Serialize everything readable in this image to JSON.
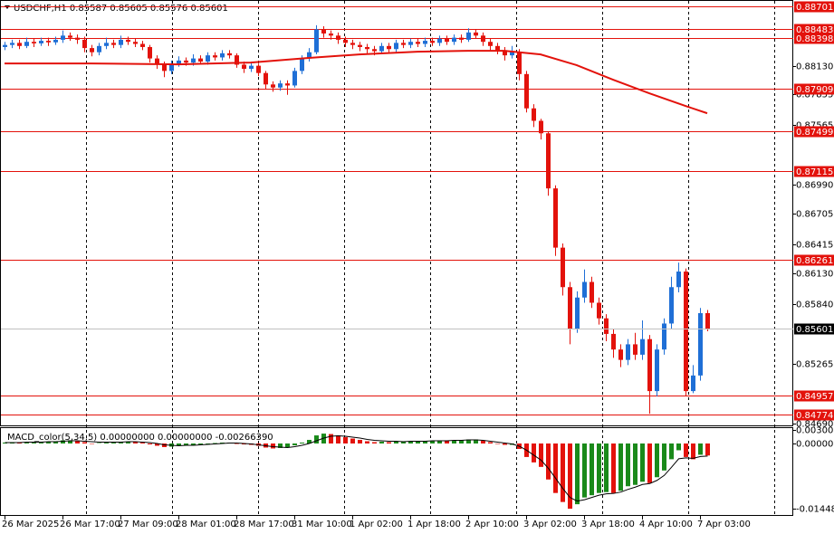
{
  "chart_data": {
    "type": "candlestick",
    "title": "USDCHF,H1 0.85587 0.85605 0.85576 0.85601",
    "categories": [
      "26 Mar 2025",
      null,
      null,
      null,
      null,
      null,
      null,
      null,
      "26 Mar 17:00",
      null,
      null,
      null,
      null,
      null,
      null,
      null,
      "27 Mar 09:00",
      null,
      null,
      null,
      null,
      null,
      null,
      null,
      "28 Mar 01:00",
      null,
      null,
      null,
      null,
      null,
      null,
      null,
      "28 Mar 17:00",
      null,
      null,
      null,
      null,
      null,
      null,
      null,
      "31 Mar 10:00",
      null,
      null,
      null,
      null,
      null,
      null,
      null,
      "1 Apr 02:00",
      null,
      null,
      null,
      null,
      null,
      null,
      null,
      "1 Apr 18:00",
      null,
      null,
      null,
      null,
      null,
      null,
      null,
      "2 Apr 10:00",
      null,
      null,
      null,
      null,
      null,
      null,
      null,
      "3 Apr 02:00",
      null,
      null,
      null,
      null,
      null,
      null,
      null,
      "3 Apr 18:00",
      null,
      null,
      null,
      null,
      null,
      null,
      null,
      "4 Apr 10:00",
      null,
      null,
      null,
      null,
      null,
      null,
      null,
      "7 Apr 03:00",
      null
    ],
    "open": [
      0.8831,
      0.8833,
      0.8835,
      0.8832,
      0.8836,
      0.88345,
      0.8837,
      0.88355,
      0.8838,
      0.8842,
      0.884,
      0.8838,
      0.883,
      0.8826,
      0.8832,
      0.8835,
      0.8833,
      0.8838,
      0.8836,
      0.8834,
      0.8831,
      0.882,
      0.8814,
      0.8808,
      0.8815,
      0.8818,
      0.8816,
      0.882,
      0.8817,
      0.8823,
      0.8821,
      0.8825,
      0.8823,
      0.8814,
      0.881,
      0.8813,
      0.8806,
      0.8795,
      0.8792,
      0.8796,
      0.8794,
      0.8808,
      0.882,
      0.8826,
      0.8848,
      0.8844,
      0.8842,
      0.8838,
      0.8835,
      0.8833,
      0.8831,
      0.8829,
      0.8827,
      0.8832,
      0.8829,
      0.8835,
      0.8833,
      0.8836,
      0.8834,
      0.8837,
      0.8835,
      0.8839,
      0.8836,
      0.884,
      0.8838,
      0.8845,
      0.8842,
      0.8836,
      0.8832,
      0.8828,
      0.8823,
      0.8826,
      0.8805,
      0.8772,
      0.876,
      0.8748,
      0.8695,
      0.8638,
      0.86,
      0.856,
      0.859,
      0.8605,
      0.8585,
      0.857,
      0.8555,
      0.854,
      0.853,
      0.8545,
      0.8535,
      0.855,
      0.85,
      0.854,
      0.8565,
      0.86,
      0.8615,
      0.85,
      0.8515,
      0.8575
    ],
    "high": [
      0.8836,
      0.8838,
      0.8838,
      0.884,
      0.8839,
      0.884,
      0.884,
      0.8841,
      0.8847,
      0.8845,
      0.8843,
      0.8841,
      0.8833,
      0.8835,
      0.884,
      0.8838,
      0.8842,
      0.8841,
      0.8839,
      0.8837,
      0.8833,
      0.8823,
      0.8817,
      0.8818,
      0.8822,
      0.8821,
      0.8824,
      0.8823,
      0.8826,
      0.8826,
      0.8828,
      0.8828,
      0.8825,
      0.8817,
      0.8816,
      0.8815,
      0.8808,
      0.8798,
      0.8799,
      0.8799,
      0.8811,
      0.8823,
      0.883,
      0.8852,
      0.8851,
      0.8847,
      0.8845,
      0.8841,
      0.8838,
      0.8836,
      0.8834,
      0.8832,
      0.8835,
      0.8835,
      0.8838,
      0.8838,
      0.8839,
      0.8839,
      0.884,
      0.884,
      0.8842,
      0.8842,
      0.8843,
      0.8843,
      0.8849,
      0.8848,
      0.8845,
      0.8839,
      0.8835,
      0.8831,
      0.8832,
      0.8829,
      0.8808,
      0.8776,
      0.8762,
      0.875,
      0.8698,
      0.8642,
      0.8605,
      0.8596,
      0.8617,
      0.861,
      0.859,
      0.8574,
      0.856,
      0.8545,
      0.855,
      0.8556,
      0.8568,
      0.8554,
      0.8545,
      0.857,
      0.861,
      0.86236,
      0.8618,
      0.8525,
      0.858,
      0.8578
    ],
    "low": [
      0.8828,
      0.883,
      0.8829,
      0.883,
      0.8831,
      0.8832,
      0.8832,
      0.8833,
      0.8835,
      0.8837,
      0.8834,
      0.8826,
      0.8822,
      0.8823,
      0.8829,
      0.883,
      0.883,
      0.8833,
      0.8831,
      0.8828,
      0.8816,
      0.881,
      0.8802,
      0.8805,
      0.8812,
      0.8813,
      0.8813,
      0.8814,
      0.8814,
      0.8818,
      0.8818,
      0.882,
      0.8811,
      0.8806,
      0.8807,
      0.8803,
      0.879,
      0.8788,
      0.8789,
      0.8785,
      0.8792,
      0.8805,
      0.8817,
      0.8824,
      0.884,
      0.8838,
      0.8834,
      0.8831,
      0.8829,
      0.8827,
      0.8825,
      0.8823,
      0.8824,
      0.8826,
      0.8826,
      0.883,
      0.883,
      0.8831,
      0.8831,
      0.8832,
      0.8832,
      0.8833,
      0.8833,
      0.8835,
      0.8836,
      0.8839,
      0.8832,
      0.8828,
      0.8824,
      0.8818,
      0.882,
      0.8799,
      0.8768,
      0.8754,
      0.8742,
      0.8688,
      0.863,
      0.8592,
      0.8545,
      0.8556,
      0.8585,
      0.858,
      0.8564,
      0.8548,
      0.8532,
      0.8523,
      0.8525,
      0.853,
      0.853,
      0.84782,
      0.8495,
      0.8535,
      0.856,
      0.8595,
      0.84956,
      0.8498,
      0.851,
      0.85576
    ],
    "close": [
      0.8833,
      0.8835,
      0.8832,
      0.8836,
      0.88345,
      0.8837,
      0.88355,
      0.8838,
      0.8842,
      0.884,
      0.8838,
      0.883,
      0.8826,
      0.8832,
      0.8835,
      0.8833,
      0.8838,
      0.8836,
      0.8834,
      0.8831,
      0.882,
      0.8814,
      0.8808,
      0.8815,
      0.8818,
      0.8816,
      0.882,
      0.8817,
      0.8823,
      0.8821,
      0.8825,
      0.8823,
      0.8814,
      0.881,
      0.8813,
      0.8806,
      0.8795,
      0.8792,
      0.8796,
      0.8794,
      0.8808,
      0.882,
      0.8826,
      0.8848,
      0.8844,
      0.8842,
      0.8838,
      0.8835,
      0.8833,
      0.8831,
      0.8829,
      0.8827,
      0.8832,
      0.8829,
      0.8835,
      0.8833,
      0.8836,
      0.8834,
      0.8837,
      0.8835,
      0.8839,
      0.8836,
      0.884,
      0.8838,
      0.8845,
      0.8842,
      0.8836,
      0.8832,
      0.8828,
      0.8823,
      0.8826,
      0.8805,
      0.8772,
      0.876,
      0.8748,
      0.8695,
      0.8638,
      0.86,
      0.856,
      0.859,
      0.8605,
      0.8585,
      0.857,
      0.8555,
      0.854,
      0.853,
      0.8545,
      0.8535,
      0.855,
      0.85,
      0.854,
      0.8565,
      0.86,
      0.8615,
      0.85,
      0.8515,
      0.8575,
      0.85601
    ],
    "up_color": "#1f6fd6",
    "down_color": "#e3120b",
    "ylim": [
      0.8467,
      0.88745
    ],
    "yticks": [
      {
        "value": 0.8813,
        "label": "0.88130"
      },
      0.87855,
      0.87565,
      {
        "value": 0.8699,
        "label": "0.86990"
      },
      0.86705,
      0.86415,
      {
        "value": 0.8613,
        "label": "0.86130"
      },
      {
        "value": 0.8584,
        "label": "0.85840"
      },
      0.85265,
      {
        "value": 0.8469,
        "label": "0.84690"
      }
    ],
    "price_lines": {
      "color": "#e3120b",
      "values": [
        0.88701,
        0.88483,
        0.88398,
        0.87909,
        0.87499,
        0.87115,
        0.86261,
        0.84957,
        0.84774
      ]
    },
    "current_price": {
      "value": 0.85601,
      "color": "#000000"
    },
    "moving_average": {
      "color": "#e3120b",
      "x": [
        0,
        12,
        24,
        34,
        42,
        49,
        57,
        64,
        69,
        74,
        79,
        84,
        89,
        94,
        97
      ],
      "values": [
        0.88152,
        0.88152,
        0.88143,
        0.88161,
        0.88205,
        0.88239,
        0.88265,
        0.88274,
        0.88274,
        0.88239,
        0.88135,
        0.87996,
        0.87865,
        0.87743,
        0.87673
      ]
    },
    "indicator": {
      "type": "macd",
      "title": "MACD_color(5,34,5) 0.00000000 0.00000000 -0.00266390",
      "histogram": [
        0.0002,
        0.0003,
        0.0002,
        0.0003,
        0.0003,
        0.0004,
        0.0004,
        0.0005,
        0.0007,
        0.0007,
        0.0006,
        0.0003,
        0,
        0.0001,
        0.0003,
        0.0003,
        0.0004,
        0.0004,
        0.0003,
        0.0002,
        -0.0002,
        -0.0005,
        -0.0008,
        -0.0007,
        -0.0005,
        -0.0004,
        -0.0003,
        -0.0002,
        0,
        0.0001,
        0.0002,
        0.0002,
        0,
        -0.0002,
        -0.0003,
        -0.0005,
        -0.0009,
        -0.0011,
        -0.001,
        -0.0009,
        -0.0004,
        0.0002,
        0.0008,
        0.0018,
        0.0022,
        0.0021,
        0.0018,
        0.0014,
        0.0011,
        0.0008,
        0.0005,
        0.0003,
        0.0004,
        0.0003,
        0.0004,
        0.0004,
        0.0005,
        0.0005,
        0.0006,
        0.0006,
        0.0007,
        0.0006,
        0.0007,
        0.0007,
        0.0009,
        0.0009,
        0.0006,
        0.0003,
        0,
        -0.0003,
        -0.0003,
        -0.0012,
        -0.003,
        -0.0042,
        -0.0052,
        -0.008,
        -0.011,
        -0.013,
        -0.0145,
        -0.0135,
        -0.012,
        -0.0115,
        -0.011,
        -0.0108,
        -0.011,
        -0.0105,
        -0.0095,
        -0.0092,
        -0.0085,
        -0.0088,
        -0.0075,
        -0.006,
        -0.0035,
        -0.0015,
        -0.003,
        -0.0035,
        -0.0025,
        -0.0026639
      ],
      "signal": [
        0.0002,
        0.0002,
        0.0002,
        0.0003,
        0.0003,
        0.0003,
        0.0004,
        0.0004,
        0.0005,
        0.0006,
        0.0006,
        0.0005,
        0.0004,
        0.0003,
        0.0003,
        0.0003,
        0.0003,
        0.0004,
        0.0004,
        0.0003,
        0.0002,
        0,
        -0.0003,
        -0.0004,
        -0.0005,
        -0.0004,
        -0.0004,
        -0.0003,
        -0.0002,
        -0.0001,
        0,
        0.0001,
        0.0001,
        0,
        -0.0001,
        -0.0003,
        -0.0005,
        -0.0007,
        -0.0008,
        -0.0009,
        -0.0007,
        -0.0004,
        0,
        0.0006,
        0.0012,
        0.0016,
        0.0017,
        0.0016,
        0.0014,
        0.0012,
        0.0009,
        0.0007,
        0.0006,
        0.0005,
        0.0005,
        0.0004,
        0.0005,
        0.0005,
        0.0005,
        0.0006,
        0.0006,
        0.0006,
        0.0007,
        0.0007,
        0.0008,
        0.0008,
        0.0007,
        0.0005,
        0.0003,
        0.0001,
        -0.0001,
        -0.0006,
        -0.0015,
        -0.0026,
        -0.0037,
        -0.0055,
        -0.0077,
        -0.01,
        -0.012,
        -0.0128,
        -0.0125,
        -0.012,
        -0.0115,
        -0.0112,
        -0.0111,
        -0.0108,
        -0.0102,
        -0.0097,
        -0.0091,
        -0.0089,
        -0.0082,
        -0.0071,
        -0.0053,
        -0.0034,
        -0.0032,
        -0.0033,
        -0.0029,
        -0.0028
      ],
      "up_color": "#1a8a1a",
      "down_color": "#e3120b",
      "signal_color": "#000000",
      "ylim": [
        -0.01549,
        0.00322
      ],
      "yticks": [
        {
          "value": 0.003006,
          "label": "0.003006"
        },
        {
          "value": 0,
          "label": "0.000000"
        },
        {
          "value": -0.014481,
          "label": "-0.014481"
        }
      ]
    }
  }
}
